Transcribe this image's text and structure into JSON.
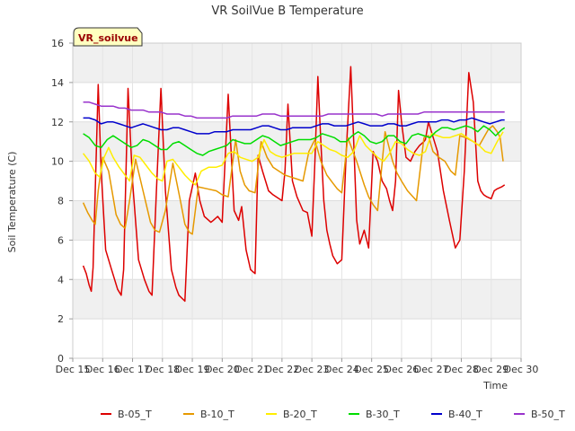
{
  "chart_data": {
    "type": "line",
    "title": "VR SoilVue B Temperature",
    "site_label": "VR_soilvue",
    "xlabel": "Time",
    "ylabel": "Soil Temperature (C)",
    "ylim": [
      0,
      16
    ],
    "yticks": [
      0,
      2,
      4,
      6,
      8,
      10,
      12,
      14,
      16
    ],
    "xlim": [
      0,
      15
    ],
    "xtick_labels": [
      "Dec 15",
      "Dec 16",
      "Dec 17",
      "Dec 18",
      "Dec 19",
      "Dec 20",
      "Dec 21",
      "Dec 22",
      "Dec 23",
      "Dec 24",
      "Dec 25",
      "Dec 26",
      "Dec 27",
      "Dec 28",
      "Dec 29",
      "Dec 30"
    ],
    "x_units": "days from Dec 15",
    "grid": true,
    "legend_position": "bottom",
    "series": [
      {
        "name": "B-05_T",
        "color": "#dd0000",
        "x": [
          0.35,
          0.45,
          0.55,
          0.62,
          0.68,
          0.76,
          0.85,
          0.95,
          1.1,
          1.3,
          1.5,
          1.62,
          1.7,
          1.85,
          2.0,
          2.2,
          2.4,
          2.55,
          2.65,
          2.8,
          2.95,
          3.1,
          3.3,
          3.45,
          3.55,
          3.75,
          3.9,
          4.1,
          4.25,
          4.4,
          4.55,
          4.62,
          4.7,
          4.85,
          5.0,
          5.2,
          5.4,
          5.55,
          5.65,
          5.8,
          5.95,
          6.1,
          6.2,
          6.35,
          6.45,
          6.55,
          6.7,
          6.9,
          7.0,
          7.1,
          7.2,
          7.35,
          7.5,
          7.7,
          7.85,
          8.0,
          8.1,
          8.2,
          8.3,
          8.4,
          8.5,
          8.6,
          8.7,
          8.85,
          9.0,
          9.15,
          9.3,
          9.4,
          9.5,
          9.6,
          9.75,
          9.9,
          10.05,
          10.2,
          10.35,
          10.5,
          10.6,
          10.7,
          10.8,
          10.9,
          11.0,
          11.15,
          11.3,
          11.45,
          11.6,
          11.75,
          11.8,
          11.9,
          12.0,
          12.2,
          12.4,
          12.6,
          12.8,
          12.95,
          13.1,
          13.25,
          13.4,
          13.55,
          13.65,
          13.75,
          13.85,
          14.0,
          14.1,
          14.2,
          14.35,
          14.45
        ],
        "y": [
          4.7,
          4.3,
          3.7,
          3.4,
          4.6,
          9.0,
          13.9,
          9.5,
          5.5,
          4.5,
          3.5,
          3.2,
          4.5,
          13.7,
          9.0,
          5.0,
          4.0,
          3.4,
          3.2,
          8.5,
          13.7,
          8.5,
          4.5,
          3.6,
          3.2,
          2.9,
          8.0,
          9.4,
          8.0,
          7.2,
          7.0,
          6.9,
          7.0,
          7.2,
          6.9,
          13.4,
          7.5,
          7.0,
          7.7,
          5.5,
          4.5,
          4.3,
          10.3,
          9.5,
          9.0,
          8.5,
          8.3,
          8.1,
          8.0,
          9.5,
          12.9,
          9.0,
          8.2,
          7.5,
          7.4,
          6.2,
          10.0,
          14.3,
          11.0,
          8.0,
          6.5,
          5.8,
          5.2,
          4.8,
          5.0,
          10.5,
          14.8,
          11.0,
          7.0,
          5.8,
          6.5,
          5.6,
          10.5,
          10.0,
          9.0,
          8.6,
          8.0,
          7.5,
          9.0,
          13.6,
          12.0,
          10.2,
          10.0,
          10.5,
          10.8,
          11.0,
          11.1,
          12.0,
          11.5,
          10.5,
          8.5,
          7.0,
          5.6,
          6.0,
          9.5,
          14.5,
          13.0,
          9.0,
          8.5,
          8.3,
          8.2,
          8.1,
          8.5,
          8.6,
          8.7,
          8.8
        ]
      },
      {
        "name": "B-10_T",
        "color": "#e69900",
        "x": [
          0.35,
          0.5,
          0.65,
          0.75,
          0.85,
          1.0,
          1.2,
          1.45,
          1.6,
          1.75,
          1.9,
          2.1,
          2.35,
          2.6,
          2.75,
          2.9,
          3.1,
          3.35,
          3.6,
          3.75,
          3.9,
          4.0,
          4.2,
          4.5,
          4.8,
          5.0,
          5.2,
          5.45,
          5.6,
          5.75,
          5.9,
          6.1,
          6.3,
          6.5,
          6.7,
          6.9,
          7.1,
          7.3,
          7.5,
          7.7,
          7.9,
          8.1,
          8.3,
          8.5,
          8.7,
          8.85,
          9.0,
          9.2,
          9.5,
          9.75,
          9.9,
          10.05,
          10.2,
          10.45,
          10.7,
          10.85,
          11.0,
          11.2,
          11.5,
          11.75,
          11.9,
          12.05,
          12.25,
          12.45,
          12.65,
          12.8,
          12.95,
          13.15,
          13.4,
          13.6,
          13.75,
          13.9,
          14.05,
          14.2,
          14.3,
          14.4
        ],
        "y": [
          7.9,
          7.4,
          7.0,
          6.8,
          8.5,
          10.2,
          9.5,
          7.3,
          6.8,
          6.6,
          8.0,
          10.1,
          8.5,
          6.9,
          6.5,
          6.4,
          7.5,
          9.9,
          8.0,
          6.8,
          6.4,
          6.3,
          8.7,
          8.6,
          8.5,
          8.3,
          8.2,
          11.1,
          9.5,
          8.8,
          8.5,
          8.4,
          11.0,
          10.2,
          9.7,
          9.5,
          9.3,
          9.2,
          9.1,
          9.0,
          10.5,
          11.1,
          10.0,
          9.3,
          8.9,
          8.6,
          8.4,
          11.2,
          10.0,
          8.8,
          8.2,
          7.8,
          7.5,
          11.5,
          10.0,
          9.4,
          9.0,
          8.5,
          8.0,
          11.2,
          11.3,
          10.5,
          10.2,
          10.0,
          9.5,
          9.3,
          11.3,
          11.2,
          11.0,
          10.8,
          11.2,
          11.6,
          11.8,
          11.5,
          11.2,
          10.0
        ]
      },
      {
        "name": "B-20_T",
        "color": "#ffee00",
        "x": [
          0.35,
          0.55,
          0.75,
          0.9,
          1.05,
          1.2,
          1.35,
          1.55,
          1.75,
          1.9,
          2.05,
          2.25,
          2.45,
          2.65,
          2.85,
          3.0,
          3.15,
          3.35,
          3.55,
          3.75,
          3.95,
          4.1,
          4.3,
          4.55,
          4.8,
          5.0,
          5.2,
          5.4,
          5.6,
          5.8,
          6.0,
          6.2,
          6.4,
          6.6,
          6.8,
          7.0,
          7.2,
          7.4,
          7.6,
          7.8,
          8.0,
          8.2,
          8.4,
          8.6,
          8.8,
          9.0,
          9.2,
          9.4,
          9.6,
          9.8,
          10.0,
          10.2,
          10.4,
          10.6,
          10.8,
          11.0,
          11.2,
          11.4,
          11.6,
          11.8,
          12.0,
          12.2,
          12.4,
          12.6,
          12.8,
          13.0,
          13.2,
          13.4,
          13.6,
          13.8,
          14.0,
          14.2,
          14.4
        ],
        "y": [
          10.4,
          10.0,
          9.4,
          9.2,
          10.2,
          10.7,
          10.2,
          9.7,
          9.3,
          9.0,
          10.3,
          10.2,
          9.8,
          9.4,
          9.1,
          9.0,
          10.0,
          10.1,
          9.7,
          9.3,
          9.0,
          8.8,
          9.5,
          9.7,
          9.7,
          9.8,
          10.4,
          10.5,
          10.2,
          10.1,
          10.0,
          10.2,
          11.1,
          10.5,
          10.3,
          10.2,
          10.3,
          10.4,
          10.4,
          10.4,
          10.4,
          11.0,
          10.8,
          10.6,
          10.5,
          10.3,
          10.2,
          10.5,
          11.3,
          10.8,
          10.5,
          10.2,
          10.0,
          10.4,
          11.0,
          10.9,
          10.6,
          10.4,
          10.3,
          10.5,
          11.4,
          11.3,
          11.2,
          11.2,
          11.3,
          11.4,
          11.2,
          11.0,
          10.8,
          10.5,
          10.4,
          11.0,
          11.5
        ]
      },
      {
        "name": "B-30_T",
        "color": "#00dd00",
        "x": [
          0.35,
          0.55,
          0.75,
          0.95,
          1.15,
          1.35,
          1.55,
          1.75,
          1.95,
          2.15,
          2.35,
          2.55,
          2.75,
          2.95,
          3.15,
          3.35,
          3.55,
          3.75,
          3.95,
          4.15,
          4.35,
          4.55,
          4.75,
          4.95,
          5.15,
          5.35,
          5.55,
          5.75,
          5.95,
          6.15,
          6.35,
          6.55,
          6.75,
          6.95,
          7.15,
          7.35,
          7.55,
          7.75,
          7.95,
          8.15,
          8.35,
          8.55,
          8.75,
          8.95,
          9.15,
          9.35,
          9.55,
          9.75,
          9.95,
          10.15,
          10.35,
          10.55,
          10.75,
          10.95,
          11.15,
          11.35,
          11.55,
          11.75,
          11.95,
          12.15,
          12.35,
          12.55,
          12.75,
          12.95,
          13.15,
          13.35,
          13.55,
          13.75,
          13.95,
          14.15,
          14.35,
          14.45
        ],
        "y": [
          11.4,
          11.2,
          10.8,
          10.7,
          11.1,
          11.3,
          11.1,
          10.9,
          10.7,
          10.8,
          11.1,
          11.0,
          10.8,
          10.6,
          10.6,
          10.9,
          11.0,
          10.8,
          10.6,
          10.4,
          10.3,
          10.5,
          10.6,
          10.7,
          10.8,
          11.1,
          11.0,
          10.9,
          10.9,
          11.1,
          11.3,
          11.2,
          11.0,
          10.8,
          10.9,
          11.0,
          11.1,
          11.1,
          11.1,
          11.2,
          11.4,
          11.3,
          11.2,
          11.0,
          11.0,
          11.3,
          11.5,
          11.3,
          11.0,
          10.9,
          11.0,
          11.3,
          11.3,
          11.0,
          10.9,
          11.3,
          11.4,
          11.3,
          11.2,
          11.5,
          11.7,
          11.7,
          11.6,
          11.7,
          11.8,
          11.7,
          11.5,
          11.8,
          11.6,
          11.3,
          11.6,
          11.7
        ]
      },
      {
        "name": "B-40_T",
        "color": "#0000cc",
        "x": [
          0.35,
          0.55,
          0.75,
          0.95,
          1.15,
          1.35,
          1.55,
          1.75,
          1.95,
          2.15,
          2.35,
          2.55,
          2.75,
          2.95,
          3.15,
          3.35,
          3.55,
          3.75,
          3.95,
          4.15,
          4.35,
          4.55,
          4.75,
          4.95,
          5.15,
          5.35,
          5.55,
          5.75,
          5.95,
          6.15,
          6.35,
          6.55,
          6.75,
          6.95,
          7.15,
          7.35,
          7.55,
          7.75,
          7.95,
          8.15,
          8.35,
          8.55,
          8.75,
          8.95,
          9.15,
          9.35,
          9.55,
          9.75,
          9.95,
          10.15,
          10.35,
          10.55,
          10.75,
          10.95,
          11.15,
          11.35,
          11.55,
          11.75,
          11.95,
          12.15,
          12.35,
          12.55,
          12.75,
          12.95,
          13.15,
          13.35,
          13.55,
          13.75,
          13.95,
          14.15,
          14.35,
          14.45
        ],
        "y": [
          12.2,
          12.2,
          12.1,
          11.9,
          12.0,
          12.0,
          11.9,
          11.8,
          11.7,
          11.8,
          11.9,
          11.8,
          11.7,
          11.6,
          11.6,
          11.7,
          11.7,
          11.6,
          11.5,
          11.4,
          11.4,
          11.4,
          11.5,
          11.5,
          11.5,
          11.6,
          11.6,
          11.6,
          11.6,
          11.7,
          11.8,
          11.8,
          11.7,
          11.6,
          11.6,
          11.7,
          11.7,
          11.7,
          11.7,
          11.8,
          11.9,
          11.9,
          11.8,
          11.8,
          11.8,
          11.9,
          12.0,
          11.9,
          11.8,
          11.8,
          11.8,
          11.9,
          11.9,
          11.8,
          11.8,
          11.9,
          12.0,
          12.0,
          12.0,
          12.0,
          12.1,
          12.1,
          12.0,
          12.1,
          12.1,
          12.2,
          12.1,
          12.0,
          11.9,
          12.0,
          12.1,
          12.1
        ]
      },
      {
        "name": "B-50_T",
        "color": "#9933cc",
        "x": [
          0.35,
          0.55,
          0.75,
          0.95,
          1.15,
          1.35,
          1.55,
          1.75,
          1.95,
          2.15,
          2.35,
          2.55,
          2.75,
          2.95,
          3.15,
          3.35,
          3.55,
          3.75,
          3.95,
          4.15,
          4.35,
          4.55,
          4.75,
          4.95,
          5.15,
          5.35,
          5.55,
          5.75,
          5.95,
          6.15,
          6.35,
          6.55,
          6.75,
          6.95,
          7.15,
          7.35,
          7.55,
          7.75,
          7.95,
          8.15,
          8.35,
          8.55,
          8.75,
          8.95,
          9.15,
          9.35,
          9.55,
          9.75,
          9.95,
          10.15,
          10.35,
          10.55,
          10.75,
          10.95,
          11.15,
          11.35,
          11.55,
          11.75,
          11.95,
          12.15,
          12.35,
          12.55,
          12.75,
          12.95,
          13.15,
          13.35,
          13.55,
          13.75,
          13.95,
          14.15,
          14.35,
          14.45
        ],
        "y": [
          13.0,
          13.0,
          12.9,
          12.8,
          12.8,
          12.8,
          12.7,
          12.7,
          12.6,
          12.6,
          12.6,
          12.5,
          12.5,
          12.5,
          12.4,
          12.4,
          12.4,
          12.3,
          12.3,
          12.2,
          12.2,
          12.2,
          12.2,
          12.2,
          12.2,
          12.3,
          12.3,
          12.3,
          12.3,
          12.3,
          12.4,
          12.4,
          12.4,
          12.3,
          12.3,
          12.3,
          12.3,
          12.3,
          12.3,
          12.3,
          12.3,
          12.4,
          12.4,
          12.4,
          12.4,
          12.4,
          12.4,
          12.4,
          12.4,
          12.4,
          12.3,
          12.4,
          12.4,
          12.4,
          12.4,
          12.4,
          12.4,
          12.5,
          12.5,
          12.5,
          12.5,
          12.5,
          12.5,
          12.5,
          12.5,
          12.5,
          12.5,
          12.5,
          12.5,
          12.5,
          12.5,
          12.5
        ]
      }
    ]
  }
}
